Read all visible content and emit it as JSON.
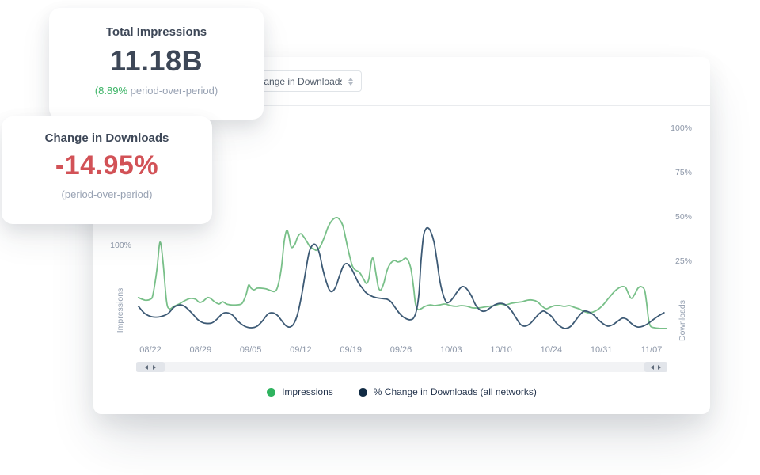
{
  "cards": {
    "impressions": {
      "title": "Total Impressions",
      "value": "11.18B",
      "delta_highlight": "(8.89%",
      "delta_rest": " period-over-period)"
    },
    "downloads": {
      "title": "Change in Downloads",
      "value": "-14.95%",
      "sub": "(period-over-period)"
    }
  },
  "panel": {
    "dropdown": {
      "value": "Change in Downloads"
    }
  },
  "colors": {
    "impressions_line": "#79c089",
    "impressions_accent": "#3cb466",
    "downloads_line": "#3d5a75",
    "downloads_dot": "#112b44",
    "negative_red": "#d25257"
  },
  "chart_data": {
    "type": "line",
    "x_ticks": [
      "08/22",
      "08/29",
      "09/05",
      "09/12",
      "09/19",
      "09/26",
      "10/03",
      "10/10",
      "10/24",
      "10/31",
      "11/07"
    ],
    "left_axis": {
      "title": "Impressions",
      "visible_tick": "100%"
    },
    "right_axis": {
      "title": "Downloads",
      "ticks": [
        "100%",
        "75%",
        "50%",
        "25%"
      ],
      "tick_values": [
        100,
        75,
        50,
        25
      ]
    },
    "grid": false,
    "legend_position": "bottom",
    "legend": [
      {
        "label": "Impressions",
        "color": "#2fb35f"
      },
      {
        "label": "% Change in Downloads (all networks)",
        "color": "#112b44"
      }
    ],
    "y_unit": "percent (right axis scale, 0% baseline)",
    "x_unit": "weeks from 08/22 (1 = one tick spacing)",
    "series": [
      {
        "name": "Impressions",
        "color": "#79c089",
        "points": [
          [
            -0.24,
            4.5
          ],
          [
            -0.11,
            3.1
          ],
          [
            0,
            3.6
          ],
          [
            0.05,
            6.3
          ],
          [
            0.13,
            20.5
          ],
          [
            0.19,
            35.7
          ],
          [
            0.25,
            25
          ],
          [
            0.32,
            2.7
          ],
          [
            0.38,
            -1.8
          ],
          [
            0.47,
            -0.4
          ],
          [
            0.57,
            0.9
          ],
          [
            0.68,
            2.7
          ],
          [
            0.79,
            4
          ],
          [
            0.9,
            3.6
          ],
          [
            0.98,
            1.8
          ],
          [
            1.06,
            2.7
          ],
          [
            1.14,
            4.5
          ],
          [
            1.2,
            4
          ],
          [
            1.28,
            2.2
          ],
          [
            1.37,
            0.9
          ],
          [
            1.44,
            2.2
          ],
          [
            1.52,
            0.9
          ],
          [
            1.61,
            0.4
          ],
          [
            1.72,
            0.4
          ],
          [
            1.83,
            1.3
          ],
          [
            1.91,
            6.3
          ],
          [
            1.96,
            11.6
          ],
          [
            2.01,
            9.8
          ],
          [
            2.07,
            8.9
          ],
          [
            2.13,
            9.8
          ],
          [
            2.21,
            9.8
          ],
          [
            2.31,
            9.4
          ],
          [
            2.4,
            8.5
          ],
          [
            2.48,
            8
          ],
          [
            2.54,
            10.7
          ],
          [
            2.61,
            20.5
          ],
          [
            2.67,
            36.2
          ],
          [
            2.72,
            42.4
          ],
          [
            2.76,
            39.7
          ],
          [
            2.81,
            33
          ],
          [
            2.88,
            34.4
          ],
          [
            2.94,
            38.8
          ],
          [
            3,
            40.6
          ],
          [
            3.06,
            38.8
          ],
          [
            3.13,
            35.7
          ],
          [
            3.19,
            33
          ],
          [
            3.25,
            32.1
          ],
          [
            3.32,
            31.2
          ],
          [
            3.4,
            33.9
          ],
          [
            3.48,
            39.3
          ],
          [
            3.55,
            44.6
          ],
          [
            3.63,
            48.2
          ],
          [
            3.71,
            49.6
          ],
          [
            3.77,
            48.7
          ],
          [
            3.84,
            45.1
          ],
          [
            3.9,
            37.5
          ],
          [
            3.97,
            28.6
          ],
          [
            4.03,
            22.3
          ],
          [
            4.09,
            20.1
          ],
          [
            4.17,
            18.8
          ],
          [
            4.25,
            15.2
          ],
          [
            4.31,
            12.5
          ],
          [
            4.36,
            15.2
          ],
          [
            4.41,
            25
          ],
          [
            4.45,
            26.3
          ],
          [
            4.5,
            18.3
          ],
          [
            4.55,
            10.3
          ],
          [
            4.6,
            8.9
          ],
          [
            4.66,
            12.9
          ],
          [
            4.72,
            19.6
          ],
          [
            4.79,
            23.7
          ],
          [
            4.87,
            25.4
          ],
          [
            4.94,
            24.6
          ],
          [
            5.02,
            25.4
          ],
          [
            5.09,
            26.8
          ],
          [
            5.15,
            25
          ],
          [
            5.2,
            20.5
          ],
          [
            5.25,
            10.7
          ],
          [
            5.29,
            0.9
          ],
          [
            5.34,
            -2.2
          ],
          [
            5.4,
            -1.8
          ],
          [
            5.48,
            -0.4
          ],
          [
            5.58,
            0.4
          ],
          [
            5.67,
            0
          ],
          [
            5.77,
            0.4
          ],
          [
            5.88,
            0.9
          ],
          [
            5.99,
            0
          ],
          [
            6.1,
            -0.4
          ],
          [
            6.21,
            0
          ],
          [
            6.32,
            -0.4
          ],
          [
            6.43,
            -1.3
          ],
          [
            6.54,
            -1.3
          ],
          [
            6.65,
            -0.9
          ],
          [
            6.76,
            -0.4
          ],
          [
            6.87,
            0
          ],
          [
            6.98,
            0.9
          ],
          [
            7.09,
            0.4
          ],
          [
            7.2,
            1.3
          ],
          [
            7.31,
            1.8
          ],
          [
            7.42,
            2.2
          ],
          [
            7.53,
            3.1
          ],
          [
            7.63,
            3.1
          ],
          [
            7.72,
            2.2
          ],
          [
            7.82,
            -0.4
          ],
          [
            7.9,
            -1.8
          ],
          [
            7.98,
            -0.9
          ],
          [
            8.07,
            0
          ],
          [
            8.17,
            0
          ],
          [
            8.26,
            -0.4
          ],
          [
            8.36,
            0
          ],
          [
            8.45,
            -0.9
          ],
          [
            8.55,
            -1.8
          ],
          [
            8.64,
            -3.1
          ],
          [
            8.74,
            -4
          ],
          [
            8.83,
            -3.6
          ],
          [
            8.93,
            -2.2
          ],
          [
            9.02,
            0
          ],
          [
            9.1,
            2.7
          ],
          [
            9.18,
            5.4
          ],
          [
            9.26,
            8
          ],
          [
            9.34,
            9.8
          ],
          [
            9.41,
            10.7
          ],
          [
            9.48,
            10.3
          ],
          [
            9.54,
            6.7
          ],
          [
            9.6,
            4
          ],
          [
            9.67,
            6.7
          ],
          [
            9.73,
            9.8
          ],
          [
            9.79,
            10.7
          ],
          [
            9.86,
            8.9
          ],
          [
            9.9,
            1.8
          ],
          [
            9.94,
            -7.6
          ],
          [
            9.98,
            -11.6
          ],
          [
            10.06,
            -12.5
          ],
          [
            10.17,
            -12.9
          ],
          [
            10.3,
            -12.9
          ]
        ]
      },
      {
        "name": "% Change in Downloads (all networks)",
        "color": "#3d5a75",
        "points": [
          [
            -0.24,
            -0.4
          ],
          [
            -0.11,
            -4.5
          ],
          [
            0.03,
            -6.3
          ],
          [
            0.19,
            -6.3
          ],
          [
            0.35,
            -4.5
          ],
          [
            0.47,
            -0.9
          ],
          [
            0.58,
            0.4
          ],
          [
            0.68,
            -0.4
          ],
          [
            0.82,
            -4
          ],
          [
            0.95,
            -8
          ],
          [
            1.07,
            -9.8
          ],
          [
            1.22,
            -9.8
          ],
          [
            1.33,
            -7.6
          ],
          [
            1.44,
            -4.5
          ],
          [
            1.53,
            -4
          ],
          [
            1.64,
            -5.4
          ],
          [
            1.75,
            -8.9
          ],
          [
            1.88,
            -11.6
          ],
          [
            2.01,
            -12.5
          ],
          [
            2.13,
            -11.6
          ],
          [
            2.24,
            -8.5
          ],
          [
            2.34,
            -4.9
          ],
          [
            2.43,
            -4
          ],
          [
            2.53,
            -5.4
          ],
          [
            2.62,
            -8.5
          ],
          [
            2.7,
            -11.2
          ],
          [
            2.78,
            -12.1
          ],
          [
            2.86,
            -10.3
          ],
          [
            2.94,
            -4.5
          ],
          [
            3.02,
            6.3
          ],
          [
            3.1,
            19.6
          ],
          [
            3.17,
            30.4
          ],
          [
            3.25,
            34.4
          ],
          [
            3.32,
            33.5
          ],
          [
            3.38,
            28.6
          ],
          [
            3.44,
            20.5
          ],
          [
            3.51,
            13.4
          ],
          [
            3.57,
            8.9
          ],
          [
            3.63,
            8
          ],
          [
            3.7,
            10.7
          ],
          [
            3.77,
            16.5
          ],
          [
            3.85,
            22.3
          ],
          [
            3.92,
            23.7
          ],
          [
            4,
            21.4
          ],
          [
            4.08,
            17
          ],
          [
            4.15,
            12.9
          ],
          [
            4.23,
            9.8
          ],
          [
            4.31,
            7.1
          ],
          [
            4.41,
            5.4
          ],
          [
            4.5,
            4.5
          ],
          [
            4.61,
            4
          ],
          [
            4.72,
            3.6
          ],
          [
            4.8,
            2.2
          ],
          [
            4.88,
            -0.9
          ],
          [
            4.96,
            -4
          ],
          [
            5.04,
            -6.3
          ],
          [
            5.12,
            -7.6
          ],
          [
            5.18,
            -8
          ],
          [
            5.25,
            -7.1
          ],
          [
            5.31,
            -2.7
          ],
          [
            5.36,
            7.1
          ],
          [
            5.4,
            25
          ],
          [
            5.45,
            39.3
          ],
          [
            5.5,
            43.3
          ],
          [
            5.54,
            43.8
          ],
          [
            5.59,
            42
          ],
          [
            5.66,
            35.7
          ],
          [
            5.72,
            25
          ],
          [
            5.78,
            13.4
          ],
          [
            5.85,
            5.4
          ],
          [
            5.91,
            1.8
          ],
          [
            5.97,
            2.2
          ],
          [
            6.03,
            4
          ],
          [
            6.13,
            8
          ],
          [
            6.22,
            10.7
          ],
          [
            6.3,
            9.8
          ],
          [
            6.4,
            5.8
          ],
          [
            6.49,
            0.4
          ],
          [
            6.59,
            -2.7
          ],
          [
            6.68,
            -3.1
          ],
          [
            6.78,
            -1.3
          ],
          [
            6.87,
            0.4
          ],
          [
            6.98,
            1.3
          ],
          [
            7.09,
            0.4
          ],
          [
            7.2,
            -2.7
          ],
          [
            7.3,
            -7.1
          ],
          [
            7.39,
            -10.7
          ],
          [
            7.47,
            -11.6
          ],
          [
            7.57,
            -10.3
          ],
          [
            7.66,
            -7.6
          ],
          [
            7.76,
            -4.5
          ],
          [
            7.84,
            -3.1
          ],
          [
            7.91,
            -4
          ],
          [
            8.01,
            -6.3
          ],
          [
            8.1,
            -9.8
          ],
          [
            8.2,
            -12.1
          ],
          [
            8.29,
            -12.9
          ],
          [
            8.39,
            -11.6
          ],
          [
            8.48,
            -8.5
          ],
          [
            8.58,
            -4.9
          ],
          [
            8.66,
            -3.1
          ],
          [
            8.75,
            -3.6
          ],
          [
            8.85,
            -5.4
          ],
          [
            8.94,
            -8
          ],
          [
            9.04,
            -10.3
          ],
          [
            9.13,
            -11.6
          ],
          [
            9.23,
            -10.7
          ],
          [
            9.32,
            -8.9
          ],
          [
            9.42,
            -7.1
          ],
          [
            9.5,
            -7.6
          ],
          [
            9.57,
            -9.4
          ],
          [
            9.65,
            -11.2
          ],
          [
            9.73,
            -12.1
          ],
          [
            9.83,
            -11.6
          ],
          [
            9.92,
            -10.3
          ],
          [
            10.03,
            -8
          ],
          [
            10.14,
            -5.8
          ],
          [
            10.25,
            -4
          ]
        ]
      }
    ]
  }
}
